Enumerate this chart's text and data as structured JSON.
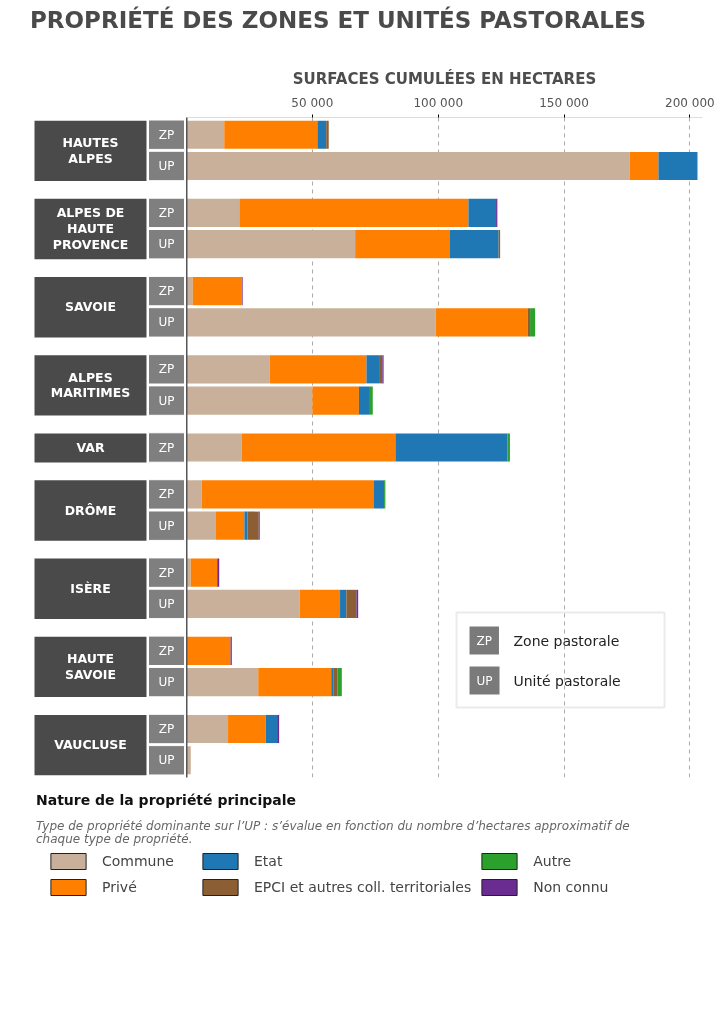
{
  "chart_data": {
    "type": "bar",
    "orientation": "horizontal",
    "stacked": true,
    "title": "PROPRIÉTÉ DES ZONES ET UNITÉS PASTORALES",
    "xlabel": "SURFACES CUMULÉES EN HECTARES",
    "categories": [
      [
        "HAUTES\nALPES",
        "ZP"
      ],
      [
        null,
        "UP"
      ],
      [
        "ALPES DE\nHAUTE\nPROVENCE",
        "ZP"
      ],
      [
        null,
        "UP"
      ],
      [
        "SAVOIE",
        "ZP"
      ],
      [
        null,
        "UP"
      ],
      [
        "ALPES\nMARITIMES",
        "ZP"
      ],
      [
        null,
        "UP"
      ],
      [
        "VAR",
        "ZP"
      ],
      [
        "DRÔME",
        "ZP"
      ],
      [
        null,
        "UP"
      ],
      [
        "ISÈRE",
        "ZP"
      ],
      [
        null,
        "UP"
      ],
      [
        "HAUTE\nSAVOIE",
        "ZP"
      ],
      [
        null,
        "UP"
      ],
      [
        "VAUCLUSE",
        "ZP"
      ],
      [
        null,
        "UP"
      ]
    ],
    "series": [
      {
        "name": "Commune",
        "color": "#c8b09a",
        "values": [
          15000,
          176000,
          21000,
          67000,
          2500,
          99000,
          33000,
          50000,
          22000,
          6000,
          11500,
          1700,
          45000,
          null,
          28500,
          16500,
          1700
        ]
      },
      {
        "name": "Privé",
        "color": "#ff8000",
        "values": [
          37000,
          11500,
          91000,
          37500,
          19500,
          36500,
          38500,
          18500,
          61000,
          68500,
          11500,
          10500,
          16000,
          17500,
          29000,
          15000,
          null
        ]
      },
      {
        "name": "Etat",
        "color": "#1f77b4",
        "values": [
          3500,
          15500,
          11000,
          19500,
          null,
          null,
          5000,
          4000,
          44500,
          4000,
          1200,
          null,
          2500,
          null,
          1000,
          4500,
          null
        ]
      },
      {
        "name": "EPCI et autres coll. territoriales",
        "color": "#8b5e34",
        "values": [
          1000,
          null,
          null,
          600,
          null,
          1000,
          1300,
          null,
          null,
          null,
          4500,
          null,
          4000,
          null,
          1400,
          null,
          null
        ]
      },
      {
        "name": "Autre",
        "color": "#2ca02c",
        "values": [
          null,
          null,
          null,
          null,
          null,
          2000,
          null,
          1500,
          1000,
          500,
          null,
          null,
          null,
          null,
          1800,
          null,
          null
        ]
      },
      {
        "name": "Non connu",
        "color": "#6a2c91",
        "values": [
          null,
          null,
          500,
          null,
          300,
          null,
          500,
          null,
          null,
          null,
          400,
          800,
          700,
          500,
          null,
          800,
          null
        ]
      }
    ],
    "xlim": [
      0,
      205000
    ],
    "xticks": [
      {
        "value": 50000,
        "label": "50 000"
      },
      {
        "value": 100000,
        "label": "100 000"
      },
      {
        "value": 150000,
        "label": "150 000"
      },
      {
        "value": 200000,
        "label": "200 000"
      }
    ],
    "grid": "x",
    "legend": "bottom",
    "legend_title": "Nature de la propriété principale",
    "annotations": [
      "Type de propriété dominante sur l’UP : s’évalue en fonction du nombre d’hectares approximatif de chaque type de propriété.",
      "ZP",
      "Zone pastorale",
      "UP",
      "Unité pastorale"
    ]
  }
}
